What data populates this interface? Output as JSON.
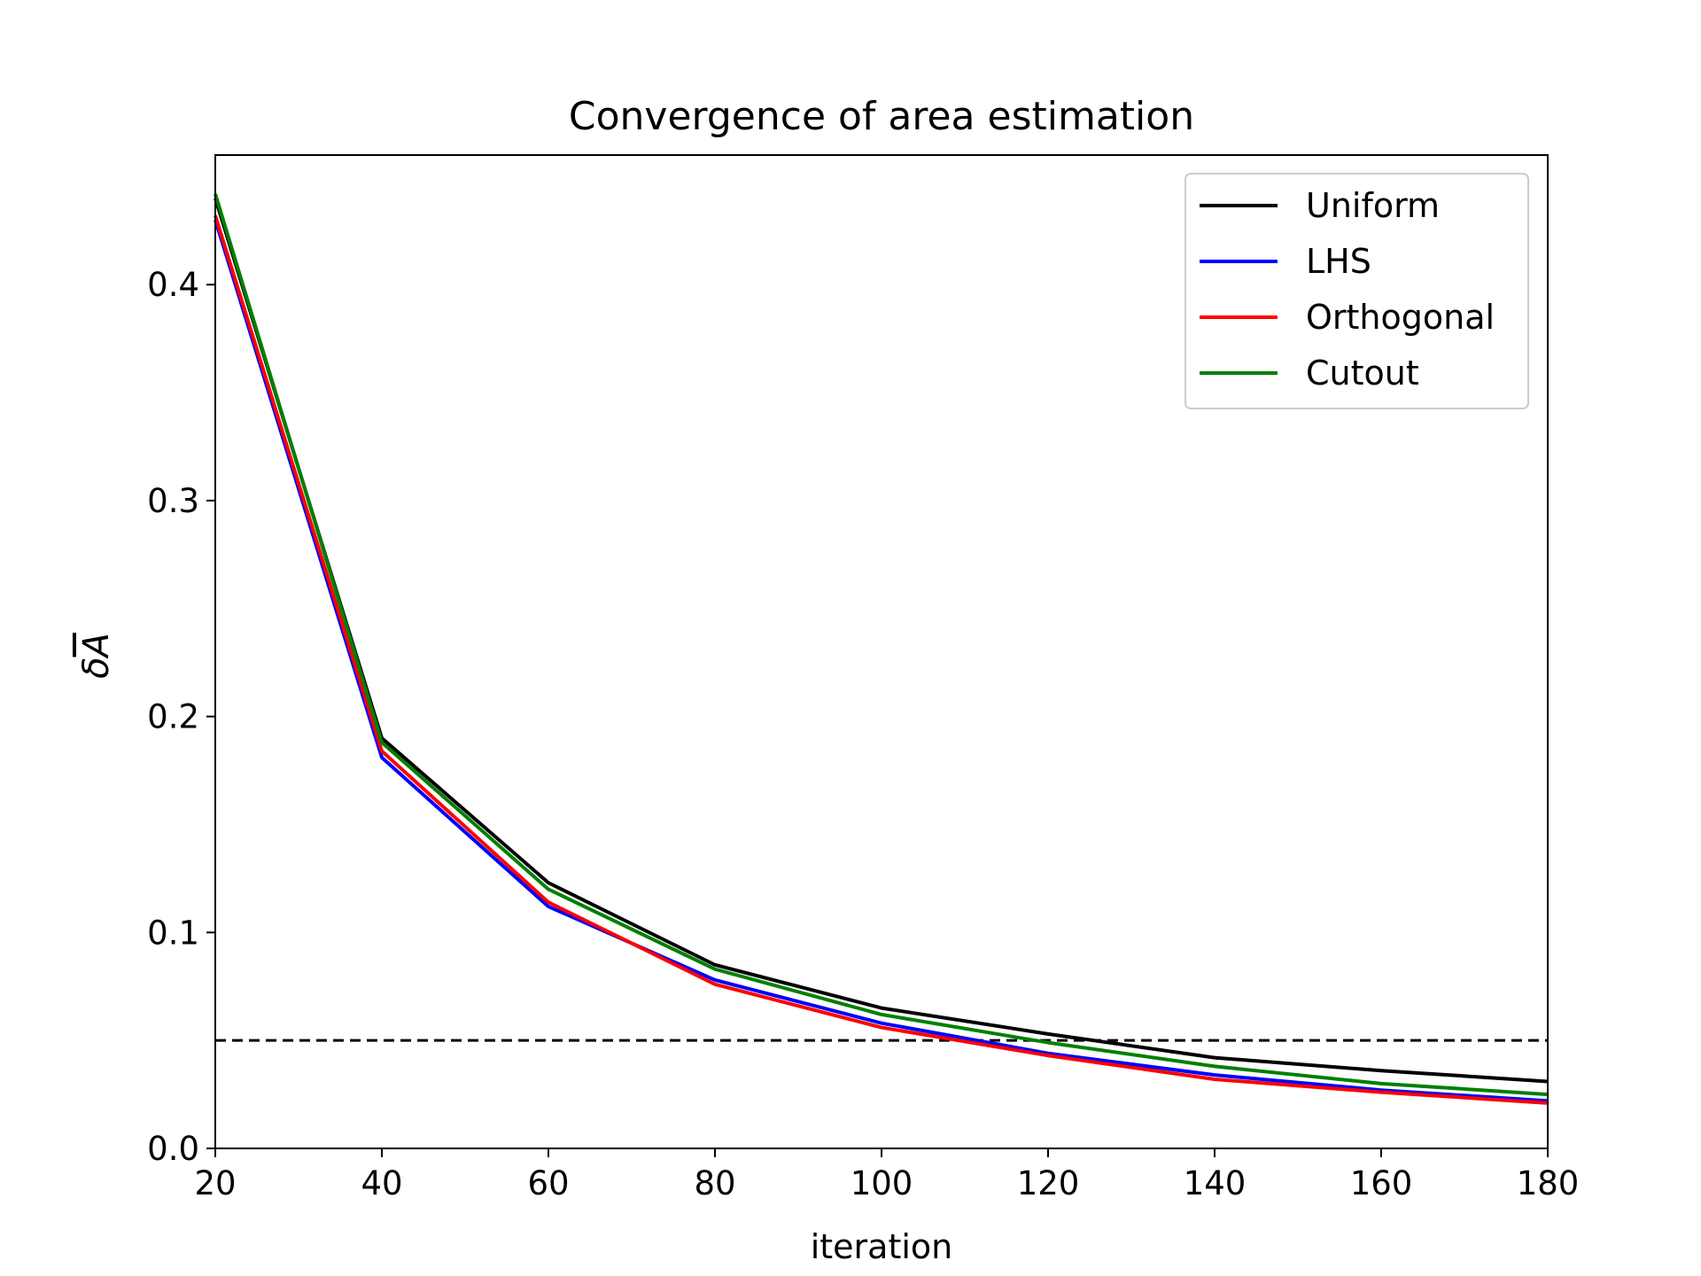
{
  "chart_data": {
    "type": "line",
    "title": "Convergence of area estimation",
    "xlabel": "iteration",
    "ylabel_base": "δ",
    "ylabel_overlined": "A",
    "x": [
      20,
      40,
      60,
      80,
      100,
      120,
      140,
      160,
      180
    ],
    "xlim": [
      20,
      180
    ],
    "ylim": [
      0,
      0.46
    ],
    "xticks": [
      20,
      40,
      60,
      80,
      100,
      120,
      140,
      160,
      180
    ],
    "xtick_labels": [
      "20",
      "40",
      "60",
      "80",
      "100",
      "120",
      "140",
      "160",
      "180"
    ],
    "yticks": [
      0.0,
      0.1,
      0.2,
      0.3,
      0.4
    ],
    "ytick_labels": [
      "0.0",
      "0.1",
      "0.2",
      "0.3",
      "0.4"
    ],
    "grid": false,
    "legend_position": "top-right",
    "series": [
      {
        "name": "Uniform",
        "color": "#000000",
        "values": [
          0.44,
          0.19,
          0.123,
          0.085,
          0.065,
          0.053,
          0.042,
          0.036,
          0.031
        ]
      },
      {
        "name": "LHS",
        "color": "#0000ff",
        "values": [
          0.43,
          0.181,
          0.112,
          0.078,
          0.058,
          0.044,
          0.034,
          0.027,
          0.022
        ]
      },
      {
        "name": "Orthogonal",
        "color": "#ff0000",
        "values": [
          0.432,
          0.184,
          0.114,
          0.076,
          0.056,
          0.043,
          0.032,
          0.026,
          0.021
        ]
      },
      {
        "name": "Cutout",
        "color": "#008000",
        "values": [
          0.442,
          0.188,
          0.12,
          0.083,
          0.062,
          0.049,
          0.038,
          0.03,
          0.025
        ]
      }
    ],
    "reference_line": {
      "y": 0.05,
      "style": "dashed",
      "color": "#000000"
    }
  }
}
